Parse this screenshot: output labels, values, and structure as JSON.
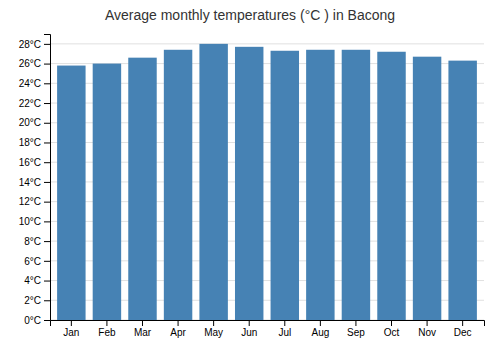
{
  "chart_data": {
    "type": "bar",
    "title": "Average monthly temperatures (°C ) in Bacong",
    "categories": [
      "Jan",
      "Feb",
      "Mar",
      "Apr",
      "May",
      "Jun",
      "Jul",
      "Aug",
      "Sep",
      "Oct",
      "Nov",
      "Dec"
    ],
    "values": [
      25.8,
      26.0,
      26.6,
      27.4,
      28.0,
      27.7,
      27.3,
      27.4,
      27.4,
      27.2,
      26.7,
      26.3
    ],
    "ylim": [
      0,
      29
    ],
    "yticks": [
      {
        "value": 0,
        "label": "0°C"
      },
      {
        "value": 2,
        "label": "2°C"
      },
      {
        "value": 4,
        "label": "4°C"
      },
      {
        "value": 6,
        "label": "6°C"
      },
      {
        "value": 8,
        "label": "8°C"
      },
      {
        "value": 10,
        "label": "10°C"
      },
      {
        "value": 12,
        "label": "12°C"
      },
      {
        "value": 14,
        "label": "14°C"
      },
      {
        "value": 16,
        "label": "16°C"
      },
      {
        "value": 18,
        "label": "18°C"
      },
      {
        "value": 20,
        "label": "20°C"
      },
      {
        "value": 22,
        "label": "22°C"
      },
      {
        "value": 24,
        "label": "24°C"
      },
      {
        "value": 26,
        "label": "26°C"
      },
      {
        "value": 28,
        "label": "28°C"
      }
    ],
    "grid": true
  }
}
